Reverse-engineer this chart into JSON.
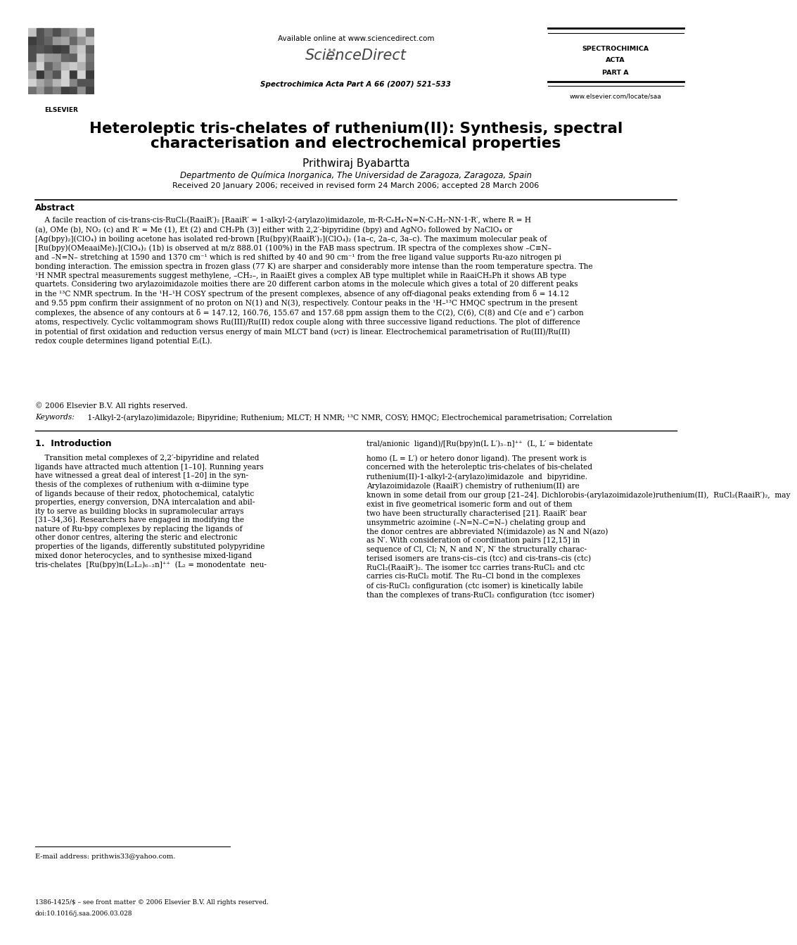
{
  "bg_color": "#ffffff",
  "page_width": 9.92,
  "page_height": 13.23,
  "header": {
    "available_online": "Available online at www.sciencedirect.com",
    "sciencedirect": "ScienceDirect",
    "journal_info": "Spectrochimica Acta Part A 66 (2007) 521–533",
    "journal_name_right1": "SPECTROCHIMICA",
    "journal_name_right2": "ACTA",
    "journal_name_right3": "PART A",
    "website": "www.elsevier.com/locate/saa"
  },
  "title_line1": "Heteroleptic tris-chelates of ruthenium(II): Synthesis, spectral",
  "title_line2": "characterisation and electrochemical properties",
  "author": "Prithwiraj Byabartta",
  "affiliation": "Departmento de Química Inorganica, The Universidad de Zaragoza, Zaragoza, Spain",
  "received": "Received 20 January 2006; received in revised form 24 March 2006; accepted 28 March 2006",
  "abstract_label": "Abstract",
  "abstract_text": "    A facile reaction of cis-trans-cis-RuCl₂(RaaiR′)₂ [RaaiR′ = 1-alkyl-2-(arylazo)imidazole, m-R-C₆H₄-N=N-C₃H₂-NN-1-R′, where R = H\n(a), OMe (b), NO₂ (c) and R′ = Me (1), Et (2) and CH₂Ph (3)] either with 2,2′-bipyridine (bpy) and AgNO₃ followed by NaClO₄ or\n[Ag(bpy)₂](ClO₄) in boiling acetone has isolated red-brown [Ru(bpy)(RaaiR′)₂](ClO₄)₂ (1a–c, 2a–c, 3a–c). The maximum molecular peak of\n[Ru(bpy)(OMeaaiMe)₂](ClO₄)₂ (1b) is observed at m/z 888.01 (100%) in the FAB mass spectrum. IR spectra of the complexes show –C≡N–\nand –N=N– stretching at 1590 and 1370 cm⁻¹ which is red shifted by 40 and 90 cm⁻¹ from the free ligand value supports Ru-azo nitrogen pi\nbonding interaction. The emission spectra in frozen glass (77 K) are sharper and considerably more intense than the room temperature spectra. The\n¹H NMR spectral measurements suggest methylene, –CH₂–, in RaaiEt gives a complex AB type multiplet while in RaaiCH₂Ph it shows AB type\nquartets. Considering two arylazoimidazole moities there are 20 different carbon atoms in the molecule which gives a total of 20 different peaks\nin the ¹³C NMR spectrum. In the ¹H–¹H COSY spectrum of the present complexes, absence of any off-diagonal peaks extending from δ = 14.12\nand 9.55 ppm confirm their assignment of no proton on N(1) and N(3), respectively. Contour peaks in the ¹H–¹³C HMQC spectrum in the present\ncomplexes, the absence of any contours at δ = 147.12, 160.76, 155.67 and 157.68 ppm assign them to the C(2), C(6), C(8) and C(e and e″) carbon\natoms, respectively. Cyclic voltammogram shows Ru(III)/Ru(II) redox couple along with three successive ligand reductions. The plot of difference\nin potential of first oxidation and reduction versus energy of main MLCT band (νᴄᴛ) is linear. Electrochemical parametrisation of Ru(III)/Ru(II)\nredox couple determines ligand potential Eₗ(L).",
  "copyright": "© 2006 Elsevier B.V. All rights reserved.",
  "keywords_label": "Keywords:",
  "keywords_text": " 1-Alkyl-2-(arylazo)imidazole; Bipyridine; Ruthenium; MLCT; H NMR; ¹³C NMR, COSY; HMQC; Electrochemical parametrisation; Correlation",
  "section1_label": "1.  Introduction",
  "intro_left": "    Transition metal complexes of 2,2′-bipyridine and related\nligands have attracted much attention [1–10]. Running years\nhave witnessed a great deal of interest [1–20] in the syn-\nthesis of the complexes of ruthenium with α-diimine type\nof ligands because of their redox, photochemical, catalytic\nproperties, energy conversion, DNA intercalation and abil-\nity to serve as building blocks in supramolecular arrays\n[31–34,36]. Researchers have engaged in modifying the\nnature of Ru-bpy complexes by replacing the ligands of\nother donor centres, altering the steric and electronic\nproperties of the ligands, differently substituted polypyridine\nmixed donor heterocycles, and to synthesise mixed-ligand\ntris-chelates  [Ru(bpy)n(L₂L₂)₆₋₂n]⁺⁺  (L₂ = monodentate  neu-",
  "intro_right_top": "tral/anionic  ligand)/[Ru(bpy)n(L L′)₃₋n]⁺⁺  (L, L′ = bidentate",
  "intro_right": "homo (L = L′) or hetero donor ligand). The present work is\nconcerned with the heteroleptic tris-chelates of bis-chelated\nruthenium(II)-1-alkyl-2-(arylazo)imidazole  and  bipyridine.\nArylazoimidazole (RaaiR′) chemistry of ruthenium(II) are\nknown in some detail from our group [21–24]. Dichlorobis-(arylazoimidazole)ruthenium(II),  RuCl₂(RaaiR′)₂,  may\nexist in five geometrical isomeric form and out of them\ntwo have been structurally characterised [21]. RaaiR′ bear\nunsymmetric azoimine (–N=N–C=N–) chelating group and\nthe donor centres are abbreviated N(imidazole) as N and N(azo)\nas N′. With consideration of coordination pairs [12,15] in\nsequence of Cl, Cl; N, N and N′, N′ the structurally charac-\nterised isomers are trans-cis–cis (tcc) and cis-trans–cis (ctc)\nRuCl₂(RaaiR′)₂. The isomer tcc carries trans-RuCl₂ and ctc\ncarries cis-RuCl₂ motif. The Ru–Cl bond in the complexes\nof cis-RuCl₂ configuration (ctc isomer) is kinetically labile\nthan the complexes of trans-RuCl₂ configuration (tcc isomer)",
  "footnote": "E-mail address: prithwis33@yahoo.com.",
  "doi_line1": "1386-1425/$ – see front matter © 2006 Elsevier B.V. All rights reserved.",
  "doi_line2": "doi:10.1016/j.saa.2006.03.028"
}
